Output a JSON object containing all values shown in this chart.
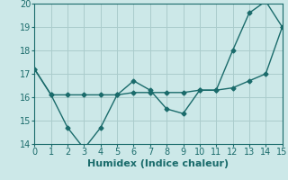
{
  "line1_x": [
    0,
    1,
    2,
    3,
    4,
    5,
    6,
    7,
    8,
    9,
    10,
    11,
    12,
    13,
    14,
    15
  ],
  "line1_y": [
    17.2,
    16.1,
    16.1,
    16.1,
    16.1,
    16.1,
    16.2,
    16.2,
    16.2,
    16.2,
    16.3,
    16.3,
    16.4,
    16.7,
    17.0,
    19.0
  ],
  "line2_x": [
    0,
    1,
    2,
    3,
    4,
    5,
    6,
    7,
    8,
    9,
    10,
    11,
    12,
    13,
    14,
    15
  ],
  "line2_y": [
    17.2,
    16.1,
    14.7,
    13.8,
    14.7,
    16.1,
    16.7,
    16.3,
    15.5,
    15.3,
    16.3,
    16.3,
    18.0,
    19.6,
    20.1,
    19.0
  ],
  "color": "#1a6b6b",
  "background_color": "#cce8e8",
  "grid_color": "#aacccc",
  "xlabel": "Humidex (Indice chaleur)",
  "ylim": [
    14,
    20
  ],
  "xlim": [
    0,
    15
  ],
  "yticks": [
    14,
    15,
    16,
    17,
    18,
    19,
    20
  ],
  "xticks": [
    0,
    1,
    2,
    3,
    4,
    5,
    6,
    7,
    8,
    9,
    10,
    11,
    12,
    13,
    14,
    15
  ],
  "linewidth": 1.0,
  "markersize": 2.5,
  "xlabel_fontsize": 8,
  "tick_fontsize": 7
}
